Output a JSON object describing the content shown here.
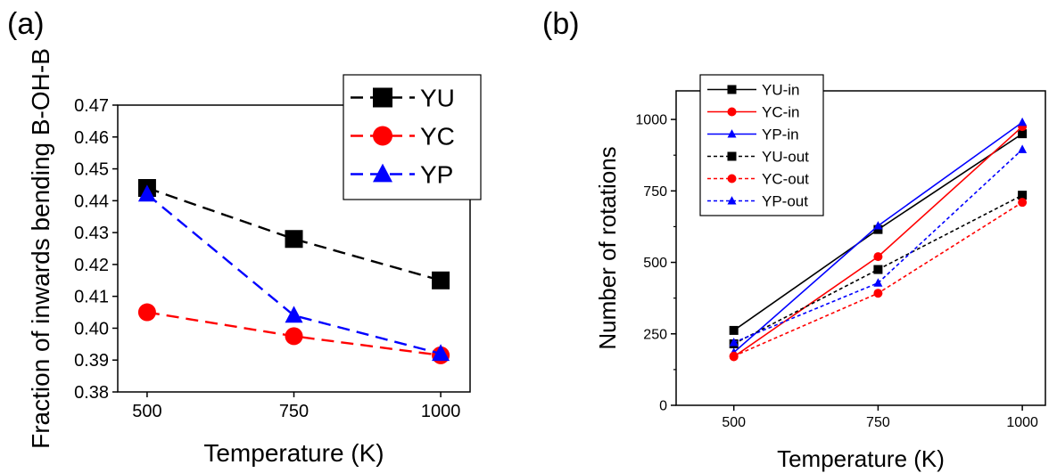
{
  "chart_data": [
    {
      "panel_label": "(a)",
      "type": "line",
      "xlabel": "Temperature (K)",
      "ylabel": "Fraction of inwards bending B-OH-B",
      "x": [
        500,
        750,
        1000
      ],
      "x_ticks": [
        "500",
        "750",
        "1000"
      ],
      "xlim": [
        450,
        1050
      ],
      "ylim": [
        0.38,
        0.47
      ],
      "y_ticks": [
        "0.38",
        "0.39",
        "0.40",
        "0.41",
        "0.42",
        "0.43",
        "0.44",
        "0.45",
        "0.46",
        "0.47"
      ],
      "grid": false,
      "legend_position": "top-right",
      "series": [
        {
          "name": "YU",
          "values": [
            0.444,
            0.428,
            0.415
          ],
          "color": "#000000",
          "marker": "square",
          "line": "dashed"
        },
        {
          "name": "YC",
          "values": [
            0.405,
            0.3975,
            0.3915
          ],
          "color": "#ff0000",
          "marker": "circle",
          "line": "dashed"
        },
        {
          "name": "YP",
          "values": [
            0.442,
            0.404,
            0.392
          ],
          "color": "#0000ff",
          "marker": "triangle",
          "line": "dashed"
        }
      ]
    },
    {
      "panel_label": "(b)",
      "type": "line",
      "xlabel": "Temperature (K)",
      "ylabel": "Number of rotations",
      "x": [
        500,
        750,
        1000
      ],
      "x_ticks": [
        "500",
        "750",
        "1000"
      ],
      "xlim": [
        400,
        1040
      ],
      "ylim": [
        0,
        1100
      ],
      "y_ticks": [
        "0",
        "250",
        "500",
        "750",
        "1000"
      ],
      "grid": false,
      "legend_position": "top-left",
      "series": [
        {
          "name": "YU-in",
          "values": [
            262,
            615,
            950
          ],
          "color": "#000000",
          "marker": "square",
          "line": "solid"
        },
        {
          "name": "YC-in",
          "values": [
            170,
            520,
            975
          ],
          "color": "#ff0000",
          "marker": "circle",
          "line": "solid"
        },
        {
          "name": "YP-in",
          "values": [
            185,
            628,
            990
          ],
          "color": "#0000ff",
          "marker": "triangle",
          "line": "solid"
        },
        {
          "name": "YU-out",
          "values": [
            215,
            475,
            735
          ],
          "color": "#000000",
          "marker": "square",
          "line": "dotted"
        },
        {
          "name": "YC-out",
          "values": [
            172,
            392,
            710
          ],
          "color": "#ff0000",
          "marker": "circle",
          "line": "dotted"
        },
        {
          "name": "YP-out",
          "values": [
            220,
            428,
            895
          ],
          "color": "#0000ff",
          "marker": "triangle",
          "line": "dotted"
        }
      ]
    }
  ]
}
